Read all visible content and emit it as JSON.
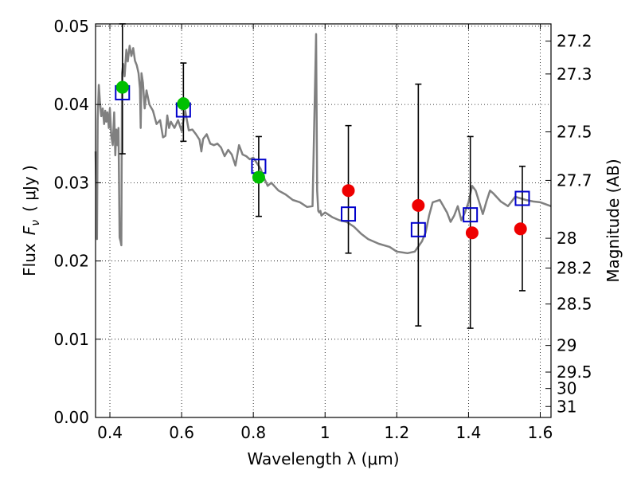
{
  "chart_data": {
    "type": "scatter",
    "xlabel": "Wavelength  λ (μm)",
    "ylabel_prefix": "Flux",
    "ylabel_symbol": "F",
    "ylabel_subscript": "ν",
    "ylabel_units": "( μJy )",
    "ylabel_right": "Magnitude (AB)",
    "xlim": [
      0.36,
      1.63
    ],
    "ylim": [
      0.0,
      0.0503
    ],
    "grid": true,
    "x_ticks": [
      {
        "value": 0.4,
        "label": "0.4"
      },
      {
        "value": 0.6,
        "label": "0.6"
      },
      {
        "value": 0.8,
        "label": "0.8"
      },
      {
        "value": 1.0,
        "label": "1"
      },
      {
        "value": 1.2,
        "label": "1.2"
      },
      {
        "value": 1.4,
        "label": "1.4"
      },
      {
        "value": 1.6,
        "label": "1.6"
      }
    ],
    "y_ticks": [
      {
        "value": 0.0,
        "label": "0.00"
      },
      {
        "value": 0.01,
        "label": "0.01"
      },
      {
        "value": 0.02,
        "label": "0.02"
      },
      {
        "value": 0.03,
        "label": "0.03"
      },
      {
        "value": 0.04,
        "label": "0.04"
      },
      {
        "value": 0.05,
        "label": "0.05"
      }
    ],
    "mag_ticks": [
      {
        "flux": 0.0481,
        "label": "27.2"
      },
      {
        "flux": 0.0439,
        "label": "27.3"
      },
      {
        "flux": 0.0365,
        "label": "27.5"
      },
      {
        "flux": 0.0303,
        "label": "27.7"
      },
      {
        "flux": 0.0229,
        "label": "28"
      },
      {
        "flux": 0.0191,
        "label": "28.2"
      },
      {
        "flux": 0.0145,
        "label": "28.5"
      },
      {
        "flux": 0.0092,
        "label": "29"
      },
      {
        "flux": 0.0058,
        "label": "29.5"
      },
      {
        "flux": 0.0037,
        "label": "30"
      },
      {
        "flux": 0.0014,
        "label": "31"
      }
    ],
    "series": [
      {
        "name": "model-spectrum",
        "kind": "line",
        "color": "#808080",
        "x": [
          0.36,
          0.364,
          0.366,
          0.369,
          0.372,
          0.376,
          0.38,
          0.384,
          0.387,
          0.39,
          0.393,
          0.397,
          0.4,
          0.404,
          0.408,
          0.412,
          0.415,
          0.418,
          0.421,
          0.424,
          0.427,
          0.43,
          0.432,
          0.434,
          0.437,
          0.441,
          0.446,
          0.45,
          0.455,
          0.46,
          0.465,
          0.47,
          0.475,
          0.48,
          0.484,
          0.486,
          0.488,
          0.492,
          0.497,
          0.502,
          0.51,
          0.52,
          0.53,
          0.54,
          0.548,
          0.555,
          0.56,
          0.565,
          0.57,
          0.58,
          0.59,
          0.6,
          0.61,
          0.62,
          0.63,
          0.64,
          0.65,
          0.655,
          0.66,
          0.67,
          0.68,
          0.69,
          0.7,
          0.71,
          0.72,
          0.73,
          0.74,
          0.75,
          0.76,
          0.77,
          0.78,
          0.79,
          0.8,
          0.81,
          0.82,
          0.83,
          0.84,
          0.85,
          0.87,
          0.89,
          0.91,
          0.93,
          0.95,
          0.965,
          0.975,
          0.978,
          0.981,
          0.984,
          0.987,
          0.99,
          1.0,
          1.02,
          1.04,
          1.06,
          1.08,
          1.1,
          1.12,
          1.15,
          1.18,
          1.2,
          1.23,
          1.25,
          1.27,
          1.28,
          1.29,
          1.3,
          1.32,
          1.34,
          1.35,
          1.36,
          1.37,
          1.38,
          1.39,
          1.4,
          1.41,
          1.42,
          1.44,
          1.45,
          1.46,
          1.47,
          1.49,
          1.51,
          1.53,
          1.56,
          1.58,
          1.6,
          1.63
        ],
        "y": [
          0.034,
          0.0228,
          0.038,
          0.0425,
          0.0405,
          0.0385,
          0.0395,
          0.0375,
          0.0392,
          0.0378,
          0.039,
          0.037,
          0.0395,
          0.036,
          0.0348,
          0.039,
          0.0335,
          0.0368,
          0.0348,
          0.037,
          0.023,
          0.0225,
          0.022,
          0.044,
          0.0452,
          0.0436,
          0.047,
          0.0455,
          0.0475,
          0.0462,
          0.0472,
          0.0456,
          0.045,
          0.044,
          0.042,
          0.037,
          0.044,
          0.0428,
          0.0395,
          0.0418,
          0.04,
          0.0392,
          0.0375,
          0.038,
          0.0358,
          0.036,
          0.0386,
          0.037,
          0.0378,
          0.037,
          0.038,
          0.0366,
          0.0392,
          0.0367,
          0.0368,
          0.0362,
          0.0355,
          0.034,
          0.0356,
          0.0362,
          0.035,
          0.0348,
          0.035,
          0.0345,
          0.0334,
          0.0342,
          0.0336,
          0.0322,
          0.0348,
          0.0336,
          0.0334,
          0.033,
          0.0332,
          0.0325,
          0.0318,
          0.0306,
          0.0296,
          0.03,
          0.029,
          0.0285,
          0.0278,
          0.0275,
          0.0269,
          0.027,
          0.049,
          0.029,
          0.0264,
          0.0262,
          0.0264,
          0.0258,
          0.0262,
          0.0256,
          0.0252,
          0.025,
          0.0244,
          0.0235,
          0.0228,
          0.0222,
          0.0218,
          0.0212,
          0.021,
          0.0212,
          0.0225,
          0.0236,
          0.0258,
          0.0275,
          0.0278,
          0.0262,
          0.025,
          0.0258,
          0.027,
          0.0252,
          0.0262,
          0.0275,
          0.0296,
          0.029,
          0.026,
          0.0276,
          0.029,
          0.0286,
          0.0276,
          0.027,
          0.0282,
          0.0278,
          0.0276,
          0.0275,
          0.027
        ]
      },
      {
        "name": "observed-detections",
        "kind": "point",
        "color": "#00c000",
        "x": [
          0.435,
          0.605,
          0.815
        ],
        "y": [
          0.0422,
          0.0401,
          0.0307
        ]
      },
      {
        "name": "observed-upper-limits",
        "kind": "point",
        "color": "#ee0000",
        "x": [
          1.065,
          1.26,
          1.41,
          1.545
        ],
        "y": [
          0.029,
          0.0271,
          0.0236,
          0.0241
        ]
      },
      {
        "name": "model-photometry",
        "kind": "square",
        "color": "#0000cc",
        "x": [
          0.435,
          0.605,
          0.815,
          1.065,
          1.26,
          1.405,
          1.55
        ],
        "y": [
          0.0415,
          0.0393,
          0.0321,
          0.026,
          0.024,
          0.0259,
          0.028
        ],
        "err_low": [
          0.0337,
          0.0353,
          0.0257,
          0.021,
          0.0117,
          0.0114,
          0.0162
        ],
        "err_high": [
          0.0503,
          0.0453,
          0.0359,
          0.0373,
          0.0426,
          0.0359,
          0.0321
        ]
      }
    ]
  }
}
